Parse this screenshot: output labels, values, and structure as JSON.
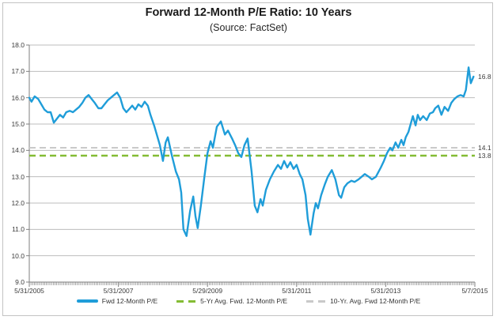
{
  "chart_data": {
    "type": "line",
    "title": "Forward 12-Month P/E Ratio: 10 Years",
    "subtitle": "(Source: FactSet)",
    "grid": "horizontal",
    "legend_position": "bottom",
    "x_axis": {
      "kind": "time-weekly",
      "tick_labels": [
        "5/31/2005",
        "5/31/2007",
        "5/29/2009",
        "5/31/2011",
        "5/31/2013",
        "5/7/2015"
      ],
      "minor_ticks": "dense-weekly"
    },
    "y_axis": {
      "min": 9.0,
      "max": 18.0,
      "step": 1.0,
      "tick_labels": [
        "18.0",
        "17.0",
        "16.0",
        "15.0",
        "14.0",
        "13.0",
        "12.0",
        "11.0",
        "10.0",
        "9.0"
      ]
    },
    "series": [
      {
        "name": "Fwd 12-Month P/E",
        "kind": "line",
        "color": "#1f9dd9",
        "end_label": "16.8",
        "end_value": 16.8,
        "points": [
          [
            0.0,
            16.0
          ],
          [
            0.005,
            15.85
          ],
          [
            0.012,
            16.05
          ],
          [
            0.02,
            15.95
          ],
          [
            0.027,
            15.75
          ],
          [
            0.034,
            15.55
          ],
          [
            0.041,
            15.45
          ],
          [
            0.048,
            15.45
          ],
          [
            0.055,
            15.05
          ],
          [
            0.062,
            15.2
          ],
          [
            0.069,
            15.35
          ],
          [
            0.076,
            15.25
          ],
          [
            0.083,
            15.45
          ],
          [
            0.091,
            15.5
          ],
          [
            0.098,
            15.45
          ],
          [
            0.105,
            15.55
          ],
          [
            0.112,
            15.65
          ],
          [
            0.119,
            15.8
          ],
          [
            0.126,
            16.0
          ],
          [
            0.133,
            16.1
          ],
          [
            0.14,
            15.95
          ],
          [
            0.147,
            15.8
          ],
          [
            0.155,
            15.6
          ],
          [
            0.162,
            15.6
          ],
          [
            0.169,
            15.75
          ],
          [
            0.176,
            15.9
          ],
          [
            0.183,
            16.0
          ],
          [
            0.19,
            16.1
          ],
          [
            0.197,
            16.2
          ],
          [
            0.204,
            16.0
          ],
          [
            0.211,
            15.6
          ],
          [
            0.218,
            15.45
          ],
          [
            0.226,
            15.6
          ],
          [
            0.231,
            15.7
          ],
          [
            0.238,
            15.55
          ],
          [
            0.245,
            15.75
          ],
          [
            0.252,
            15.65
          ],
          [
            0.259,
            15.85
          ],
          [
            0.266,
            15.7
          ],
          [
            0.272,
            15.35
          ],
          [
            0.281,
            14.9
          ],
          [
            0.288,
            14.5
          ],
          [
            0.293,
            14.2
          ],
          [
            0.3,
            13.6
          ],
          [
            0.306,
            14.3
          ],
          [
            0.311,
            14.5
          ],
          [
            0.32,
            13.8
          ],
          [
            0.329,
            13.2
          ],
          [
            0.336,
            12.9
          ],
          [
            0.341,
            12.4
          ],
          [
            0.346,
            11.0
          ],
          [
            0.353,
            10.75
          ],
          [
            0.361,
            11.7
          ],
          [
            0.368,
            12.25
          ],
          [
            0.373,
            11.5
          ],
          [
            0.378,
            11.05
          ],
          [
            0.385,
            11.9
          ],
          [
            0.393,
            13.0
          ],
          [
            0.4,
            13.9
          ],
          [
            0.407,
            14.35
          ],
          [
            0.412,
            14.1
          ],
          [
            0.421,
            14.9
          ],
          [
            0.43,
            15.1
          ],
          [
            0.439,
            14.6
          ],
          [
            0.446,
            14.75
          ],
          [
            0.455,
            14.45
          ],
          [
            0.462,
            14.2
          ],
          [
            0.469,
            13.9
          ],
          [
            0.476,
            13.75
          ],
          [
            0.483,
            14.2
          ],
          [
            0.49,
            14.45
          ],
          [
            0.499,
            13.2
          ],
          [
            0.506,
            11.9
          ],
          [
            0.512,
            11.65
          ],
          [
            0.519,
            12.15
          ],
          [
            0.524,
            11.9
          ],
          [
            0.531,
            12.5
          ],
          [
            0.54,
            12.9
          ],
          [
            0.549,
            13.2
          ],
          [
            0.558,
            13.45
          ],
          [
            0.565,
            13.3
          ],
          [
            0.572,
            13.6
          ],
          [
            0.579,
            13.35
          ],
          [
            0.586,
            13.55
          ],
          [
            0.593,
            13.3
          ],
          [
            0.6,
            13.45
          ],
          [
            0.607,
            13.1
          ],
          [
            0.613,
            12.9
          ],
          [
            0.62,
            12.3
          ],
          [
            0.625,
            11.4
          ],
          [
            0.631,
            10.8
          ],
          [
            0.638,
            11.6
          ],
          [
            0.643,
            12.0
          ],
          [
            0.648,
            11.8
          ],
          [
            0.655,
            12.3
          ],
          [
            0.663,
            12.7
          ],
          [
            0.67,
            13.0
          ],
          [
            0.679,
            13.25
          ],
          [
            0.687,
            12.9
          ],
          [
            0.695,
            12.3
          ],
          [
            0.7,
            12.2
          ],
          [
            0.707,
            12.6
          ],
          [
            0.714,
            12.75
          ],
          [
            0.723,
            12.85
          ],
          [
            0.73,
            12.8
          ],
          [
            0.739,
            12.9
          ],
          [
            0.746,
            13.0
          ],
          [
            0.753,
            13.1
          ],
          [
            0.762,
            13.0
          ],
          [
            0.769,
            12.9
          ],
          [
            0.778,
            13.0
          ],
          [
            0.789,
            13.35
          ],
          [
            0.796,
            13.6
          ],
          [
            0.803,
            13.9
          ],
          [
            0.81,
            14.1
          ],
          [
            0.815,
            14.0
          ],
          [
            0.822,
            14.3
          ],
          [
            0.828,
            14.1
          ],
          [
            0.835,
            14.4
          ],
          [
            0.84,
            14.2
          ],
          [
            0.845,
            14.5
          ],
          [
            0.851,
            14.7
          ],
          [
            0.856,
            15.0
          ],
          [
            0.861,
            15.3
          ],
          [
            0.867,
            14.95
          ],
          [
            0.872,
            15.35
          ],
          [
            0.877,
            15.15
          ],
          [
            0.884,
            15.3
          ],
          [
            0.892,
            15.15
          ],
          [
            0.899,
            15.4
          ],
          [
            0.906,
            15.45
          ],
          [
            0.911,
            15.6
          ],
          [
            0.918,
            15.7
          ],
          [
            0.925,
            15.35
          ],
          [
            0.932,
            15.65
          ],
          [
            0.94,
            15.5
          ],
          [
            0.947,
            15.8
          ],
          [
            0.954,
            15.95
          ],
          [
            0.961,
            16.05
          ],
          [
            0.968,
            16.1
          ],
          [
            0.975,
            16.05
          ],
          [
            0.98,
            16.3
          ],
          [
            0.986,
            17.15
          ],
          [
            0.991,
            16.55
          ],
          [
            0.997,
            16.8
          ]
        ]
      },
      {
        "name": "5-Yr Avg. Fwd. 12-Month P/E",
        "kind": "avg-line",
        "color": "#84bc34",
        "dash": true,
        "value": 13.8,
        "end_label": "13.8",
        "end_value": 13.8
      },
      {
        "name": "10-Yr. Avg. Fwd 12-Month P/E",
        "kind": "avg-line",
        "color": "#c9c9c9",
        "dash": true,
        "value": 14.1,
        "end_label": "14.1",
        "end_value": 14.1
      }
    ]
  },
  "colors": {
    "background": "#ffffff",
    "frame_border": "#c3c3c3",
    "gridline": "#bdbdbd",
    "axis": "#7f7f7f",
    "label_text": "#3b3b3b",
    "title_text": "#1a1a1a",
    "series_blue": "#1f9dd9",
    "avg5_green": "#84bc34",
    "avg10_gray": "#c9c9c9"
  }
}
